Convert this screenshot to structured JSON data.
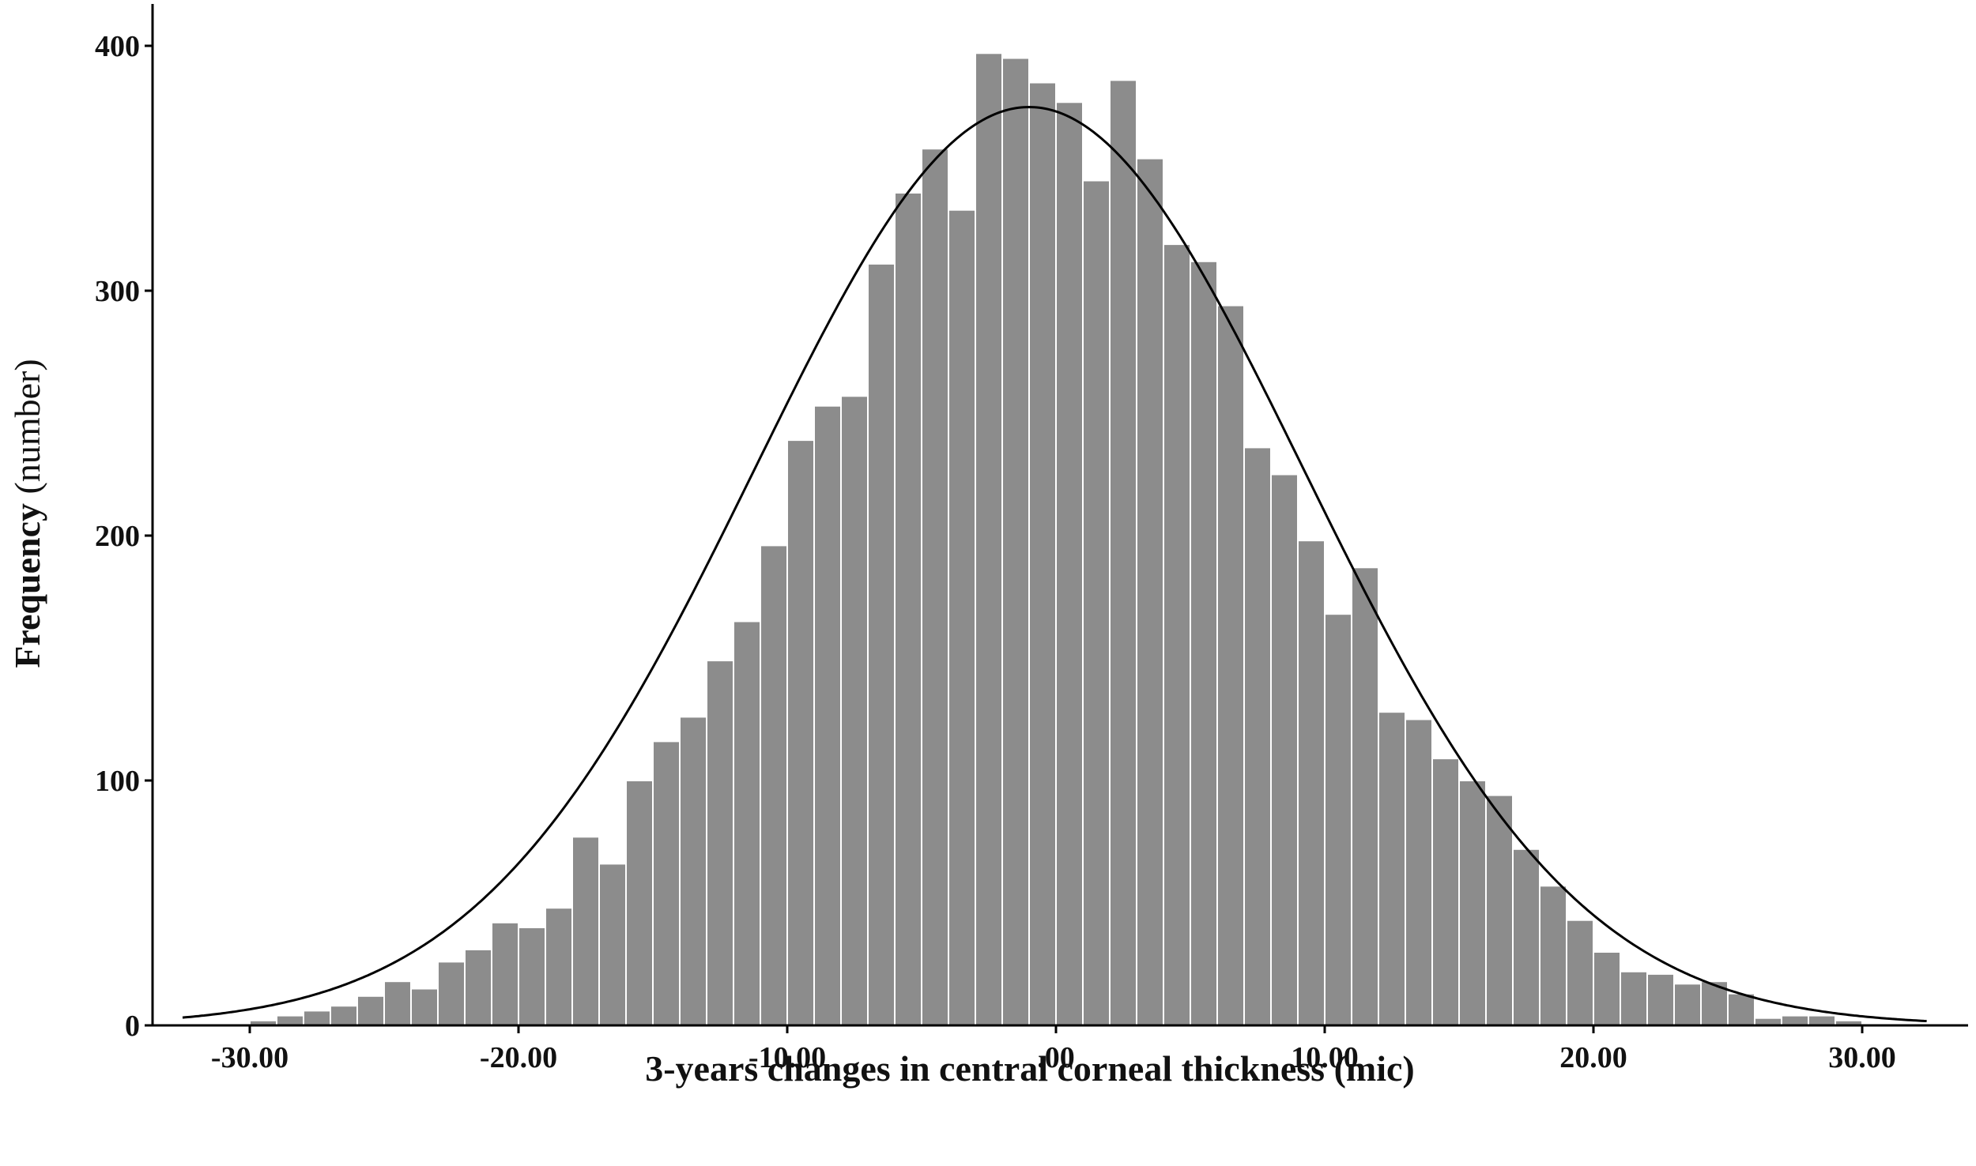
{
  "chart_data": {
    "type": "bar",
    "subtype": "histogram-with-normal-curve",
    "xlabel": "3-years changes in central corneal thickness (mic)",
    "ylabel_bold": "Frequency",
    "ylabel_rest": " (number)",
    "xlim": [
      -33,
      33
    ],
    "ylim": [
      0,
      420
    ],
    "x_ticks": [
      -30,
      -20,
      -10,
      0,
      10,
      20,
      30
    ],
    "x_tick_labels": [
      "-30.00",
      "-20.00",
      "-10.00",
      ".00",
      "10.00",
      "20.00",
      "30.00"
    ],
    "y_ticks": [
      0,
      100,
      200,
      300,
      400
    ],
    "y_tick_labels": [
      "0",
      "100",
      "200",
      "300",
      "400"
    ],
    "bin_width": 1,
    "bin_starts": [
      -30,
      -29,
      -28,
      -27,
      -26,
      -25,
      -24,
      -23,
      -22,
      -21,
      -20,
      -19,
      -18,
      -17,
      -16,
      -15,
      -14,
      -13,
      -12,
      -11,
      -10,
      -9,
      -8,
      -7,
      -6,
      -5,
      -4,
      -3,
      -2,
      -1,
      0,
      1,
      2,
      3,
      4,
      5,
      6,
      7,
      8,
      9,
      10,
      11,
      12,
      13,
      14,
      15,
      16,
      17,
      18,
      19,
      20,
      21,
      22,
      23,
      24,
      25,
      26,
      27,
      28,
      29
    ],
    "values": [
      2,
      4,
      6,
      8,
      12,
      18,
      15,
      26,
      31,
      42,
      40,
      48,
      77,
      66,
      100,
      116,
      126,
      149,
      165,
      196,
      239,
      253,
      257,
      311,
      340,
      358,
      333,
      397,
      395,
      385,
      377,
      345,
      386,
      354,
      319,
      312,
      294,
      236,
      225,
      198,
      168,
      187,
      128,
      125,
      109,
      100,
      94,
      72,
      57,
      43,
      30,
      22,
      21,
      17,
      18,
      13,
      3,
      4,
      4,
      2
    ],
    "normal_curve": {
      "mean": -1,
      "sd": 10.2,
      "peak": 375
    },
    "bar_color": "#8c8c8c",
    "bar_edge_color": "#ffffff",
    "curve_color": "#000000",
    "axis_color": "#000000",
    "grid": false,
    "legend": "none"
  }
}
